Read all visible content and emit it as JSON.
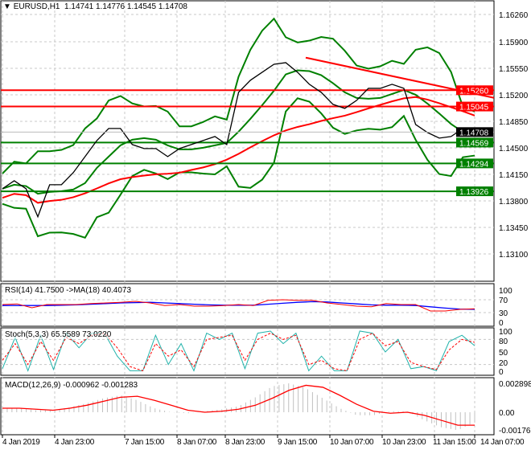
{
  "header": {
    "symbol": "EURUSD,H1",
    "ohlc": "1.14741 1.14776 1.14545 1.14708"
  },
  "chart_data": [
    {
      "type": "line",
      "title": "EURUSD,H1",
      "ylim": [
        1.1275,
        1.1645
      ],
      "y_ticks": [
        "1.16260",
        "1.15900",
        "1.15550",
        "1.15200",
        "1.14850",
        "1.14500",
        "1.14150",
        "1.13800",
        "1.13450",
        "1.13100"
      ],
      "x_ticks": [
        "4 Jan 2019",
        "4 Jan 23:00",
        "7 Jan 15:00",
        "8 Jan 07:00",
        "8 Jan 23:00",
        "9 Jan 15:00",
        "10 Jan 07:00",
        "10 Jan 23:00",
        "11 Jan 15:00",
        "14 Jan 07:00"
      ],
      "close": [
        1.1396,
        1.14065,
        1.1396,
        1.1359,
        1.14013,
        1.14013,
        1.14172,
        1.14384,
        1.14596,
        1.14755,
        1.14755,
        1.14543,
        1.1449,
        1.1449,
        1.14384,
        1.1449,
        1.14543,
        1.14596,
        1.14649,
        1.14543,
        1.15232,
        1.15391,
        1.15497,
        1.15603,
        1.15624,
        1.15497,
        1.15338,
        1.15232,
        1.15073,
        1.1502,
        1.15126,
        1.15285,
        1.15285,
        1.15338,
        1.15285,
        1.14808,
        1.14702,
        1.14628,
        1.14649,
        1.14755,
        1.14708
      ],
      "levels": [
        {
          "label": "1.15260",
          "value": 1.1526,
          "color": "#ff0000"
        },
        {
          "label": "1.15045",
          "value": 1.15045,
          "color": "#ff0000"
        },
        {
          "label": "1.14569",
          "value": 1.14569,
          "color": "#008000"
        },
        {
          "label": "1.14294",
          "value": 1.14294,
          "color": "#008000"
        },
        {
          "label": "1.13926",
          "value": 1.13926,
          "color": "#008000"
        }
      ],
      "current": {
        "label": "1.14708",
        "value": 1.14708
      },
      "trendline": [
        1.1569,
        1.1516
      ]
    },
    {
      "type": "line",
      "title": "RSI(14) 41.7500  ->MA(18) 40.4073",
      "ylim": [
        0,
        100
      ],
      "y_ticks": [
        "100",
        "70",
        "30",
        "0"
      ],
      "rsi": [
        55,
        57,
        45,
        55,
        55,
        55,
        58,
        60,
        62,
        65,
        60,
        52,
        55,
        50,
        50,
        52,
        55,
        52,
        68,
        70,
        68,
        68,
        60,
        55,
        50,
        48,
        58,
        55,
        55,
        35,
        35,
        40,
        42
      ],
      "ma": [
        52,
        52,
        52,
        52,
        53,
        54,
        56,
        58,
        60,
        61,
        62,
        60,
        58,
        56,
        54,
        53,
        53,
        53,
        56,
        59,
        62,
        64,
        63,
        60,
        57,
        54,
        53,
        53,
        52,
        48,
        44,
        41,
        40
      ]
    },
    {
      "type": "line",
      "title": "Stoch(5,3,3) 65.5589 73.0220",
      "ylim": [
        0,
        100
      ],
      "y_ticks": [
        "100",
        "80",
        "50",
        "20",
        "0"
      ],
      "main": [
        10,
        85,
        5,
        90,
        8,
        95,
        60,
        95,
        95,
        40,
        5,
        5,
        90,
        20,
        70,
        5,
        95,
        80,
        95,
        10,
        95,
        100,
        70,
        95,
        5,
        40,
        5,
        5,
        100,
        95,
        50,
        80,
        10,
        15,
        5,
        75,
        90,
        65
      ],
      "signal": [
        30,
        70,
        20,
        75,
        30,
        85,
        70,
        90,
        95,
        60,
        15,
        5,
        70,
        40,
        55,
        15,
        80,
        85,
        90,
        30,
        80,
        95,
        80,
        90,
        20,
        30,
        10,
        5,
        80,
        95,
        65,
        75,
        25,
        15,
        8,
        55,
        80,
        73
      ]
    },
    {
      "type": "bar",
      "title": "MACD(12,26,9) -0.000962 -0.001283",
      "ylim": [
        -0.002,
        0.0031
      ],
      "y_ticks": [
        "0.002898",
        "0.00",
        "-0.001763"
      ],
      "macd": [
        0.0004,
        0.0004,
        0.0002,
        0.0002,
        0.0005,
        0.0009,
        0.0014,
        0.0017,
        0.0012,
        0.0004,
        0.0,
        -0.0001,
        0.0001,
        0.0003,
        0.0006,
        0.0015,
        0.0026,
        0.0029,
        0.0024,
        0.0014,
        0.0004,
        -0.0003,
        -0.0003,
        0.0001,
        0.0001,
        -0.0008,
        -0.0015,
        -0.0018,
        -0.001
      ],
      "signal": [
        0.0004,
        0.0004,
        0.0003,
        0.0002,
        0.0004,
        0.0007,
        0.0011,
        0.0015,
        0.0016,
        0.0012,
        0.0007,
        0.0002,
        0.0,
        0.0001,
        0.0003,
        0.0007,
        0.0014,
        0.0022,
        0.0027,
        0.0025,
        0.0017,
        0.0008,
        0.0001,
        -0.0001,
        0.0,
        -0.0003,
        -0.0008,
        -0.0013,
        -0.0013
      ]
    }
  ],
  "colors": {
    "up": "#008000",
    "bands": "#008000",
    "ma_red": "#ff0000",
    "rsi": "#ff0000",
    "rsi_ma": "#0000ff",
    "stoch_main": "#20b2aa",
    "stoch_signal": "#ff0000",
    "macd_hist": "#c0c0c0",
    "macd_signal": "#ff0000"
  }
}
